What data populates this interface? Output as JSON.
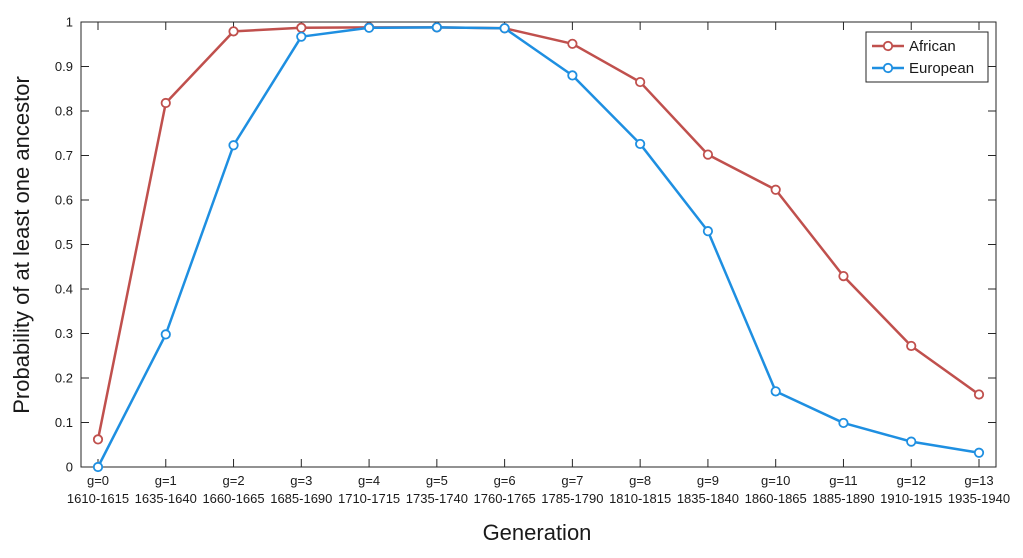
{
  "chart_data": {
    "type": "line",
    "xlabel": "Generation",
    "ylabel": "Probability of at least one ancestor",
    "ylim": [
      0,
      1
    ],
    "yticks": [
      "0",
      "0.1",
      "0.2",
      "0.3",
      "0.4",
      "0.5",
      "0.6",
      "0.7",
      "0.8",
      "0.9",
      "1"
    ],
    "categories": [
      {
        "gen": "g=0",
        "years": "1610-1615"
      },
      {
        "gen": "g=1",
        "years": "1635-1640"
      },
      {
        "gen": "g=2",
        "years": "1660-1665"
      },
      {
        "gen": "g=3",
        "years": "1685-1690"
      },
      {
        "gen": "g=4",
        "years": "1710-1715"
      },
      {
        "gen": "g=5",
        "years": "1735-1740"
      },
      {
        "gen": "g=6",
        "years": "1760-1765"
      },
      {
        "gen": "g=7",
        "years": "1785-1790"
      },
      {
        "gen": "g=8",
        "years": "1810-1815"
      },
      {
        "gen": "g=9",
        "years": "1835-1840"
      },
      {
        "gen": "g=10",
        "years": "1860-1865"
      },
      {
        "gen": "g=11",
        "years": "1885-1890"
      },
      {
        "gen": "g=12",
        "years": "1910-1915"
      },
      {
        "gen": "g=13",
        "years": "1935-1940"
      }
    ],
    "series": [
      {
        "name": "African",
        "color": "#c0504d",
        "values": [
          0.062,
          0.818,
          0.979,
          0.987,
          0.988,
          0.988,
          0.986,
          0.951,
          0.865,
          0.702,
          0.623,
          0.429,
          0.272,
          0.163
        ]
      },
      {
        "name": "European",
        "color": "#1e8fe1",
        "values": [
          0.0,
          0.298,
          0.723,
          0.967,
          0.987,
          0.988,
          0.986,
          0.88,
          0.726,
          0.53,
          0.17,
          0.099,
          0.057,
          0.032
        ]
      }
    ],
    "legend": "top-right",
    "grid": false
  }
}
